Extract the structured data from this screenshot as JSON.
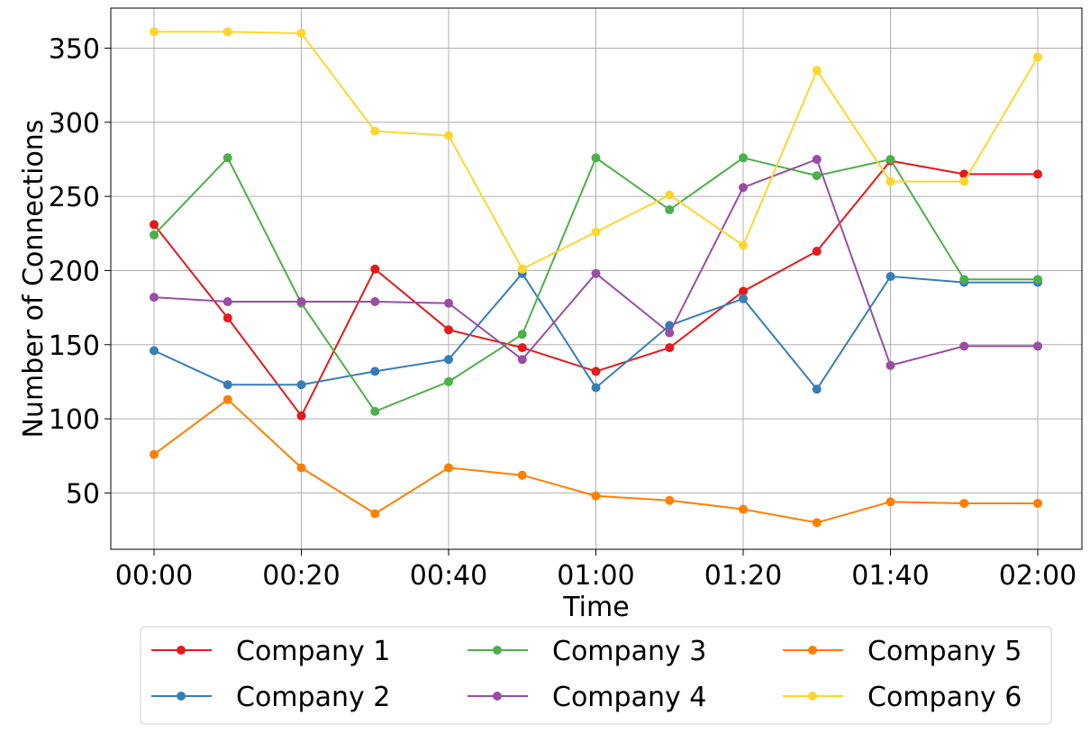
{
  "chart_data": {
    "type": "line",
    "xlabel": "Time",
    "ylabel": "Number of Connections",
    "x": [
      "00:00",
      "00:10",
      "00:20",
      "00:30",
      "00:40",
      "00:50",
      "01:00",
      "01:10",
      "01:20",
      "01:30",
      "01:40",
      "01:50",
      "02:00"
    ],
    "x_tick_labels": [
      "00:00",
      "00:20",
      "00:40",
      "01:00",
      "01:20",
      "01:40",
      "02:00"
    ],
    "y_ticks": [
      50,
      100,
      150,
      200,
      250,
      300,
      350
    ],
    "ylim": [
      12,
      377
    ],
    "grid": true,
    "legend_position": "bottom-center",
    "series": [
      {
        "name": "Company 1",
        "color": "#e41a1c",
        "values": [
          231,
          168,
          102,
          201,
          160,
          148,
          132,
          148,
          186,
          213,
          274,
          265,
          265
        ]
      },
      {
        "name": "Company 2",
        "color": "#377eb8",
        "values": [
          146,
          123,
          123,
          132,
          140,
          198,
          121,
          163,
          181,
          120,
          196,
          192,
          192
        ]
      },
      {
        "name": "Company 3",
        "color": "#4daf4a",
        "values": [
          224,
          276,
          178,
          105,
          125,
          157,
          276,
          241,
          276,
          264,
          275,
          194,
          194
        ]
      },
      {
        "name": "Company 4",
        "color": "#984ea3",
        "values": [
          182,
          179,
          179,
          179,
          178,
          140,
          198,
          158,
          256,
          275,
          136,
          149,
          149
        ]
      },
      {
        "name": "Company 5",
        "color": "#ff7f00",
        "values": [
          76,
          113,
          67,
          36,
          67,
          62,
          48,
          45,
          39,
          30,
          44,
          43,
          43
        ]
      },
      {
        "name": "Company 6",
        "color": "#fed62f",
        "values": [
          361,
          361,
          360,
          294,
          291,
          201,
          226,
          251,
          217,
          335,
          260,
          260,
          344
        ]
      }
    ]
  }
}
